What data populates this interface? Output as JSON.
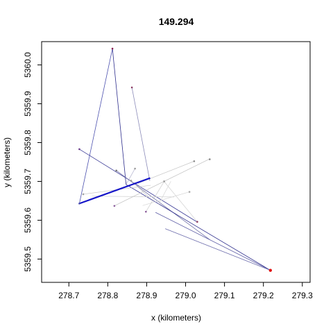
{
  "chart_data": {
    "type": "line",
    "title": "149.294",
    "xlabel": "x (kilometers)",
    "ylabel": "y (kilometers)",
    "xlim": [
      278.63,
      279.32
    ],
    "ylim": [
      5359.44,
      5360.06
    ],
    "x_ticks": [
      "278.7",
      "278.8",
      "278.9",
      "279.0",
      "279.1",
      "279.2",
      "279.3"
    ],
    "x_tick_values": [
      278.7,
      278.8,
      278.9,
      279.0,
      279.1,
      279.2,
      279.3
    ],
    "y_ticks": [
      "5359.5",
      "5359.6",
      "5359.7",
      "5359.8",
      "5359.9",
      "5360.0"
    ],
    "y_tick_values": [
      5359.5,
      5359.6,
      5359.7,
      5359.8,
      5359.9,
      5360.0
    ],
    "grid": false,
    "segments": [
      {
        "x": [
          278.812,
          278.727
        ],
        "y": [
          5360.042,
          5359.643
        ],
        "color": "#4a4fae",
        "width": 0.8
      },
      {
        "x": [
          278.812,
          278.847
        ],
        "y": [
          5360.042,
          5359.692
        ],
        "color": "#2d2d8c",
        "width": 0.8
      },
      {
        "x": [
          278.862,
          278.908
        ],
        "y": [
          5359.942,
          5359.702
        ],
        "color": "#8a8ab8",
        "width": 0.8
      },
      {
        "x": [
          278.847,
          278.87
        ],
        "y": [
          5359.692,
          5359.733
        ],
        "color": "#b0b0cc",
        "width": 0.7
      },
      {
        "x": [
          278.727,
          279.027
        ],
        "y": [
          5359.783,
          5359.597
        ],
        "color": "#3a3a96",
        "width": 0.8
      },
      {
        "x": [
          278.822,
          279.062
        ],
        "y": [
          5359.728,
          5359.55
        ],
        "color": "#7070a8",
        "width": 0.8
      },
      {
        "x": [
          278.847,
          279.218
        ],
        "y": [
          5359.692,
          5359.471
        ],
        "color": "#2a2a8a",
        "width": 0.8
      },
      {
        "x": [
          278.923,
          279.218
        ],
        "y": [
          5359.62,
          5359.471
        ],
        "color": "#5a5aa4",
        "width": 0.8
      },
      {
        "x": [
          278.948,
          279.218
        ],
        "y": [
          5359.578,
          5359.471
        ],
        "color": "#6c6cac",
        "width": 0.8
      },
      {
        "x": [
          278.737,
          278.91
        ],
        "y": [
          5359.667,
          5359.69
        ],
        "color": "#c8c8c8",
        "width": 0.7
      },
      {
        "x": [
          278.76,
          278.97
        ],
        "y": [
          5359.662,
          5359.66
        ],
        "color": "#d0d0d0",
        "width": 0.7
      },
      {
        "x": [
          278.817,
          279.06
        ],
        "y": [
          5359.637,
          5359.757
        ],
        "color": "#bdbdbd",
        "width": 0.7
      },
      {
        "x": [
          278.878,
          279.022
        ],
        "y": [
          5359.695,
          5359.752
        ],
        "color": "#c4c4c4",
        "width": 0.7
      },
      {
        "x": [
          278.89,
          279.01
        ],
        "y": [
          5359.638,
          5359.673
        ],
        "color": "#d4d4d4",
        "width": 0.7
      },
      {
        "x": [
          278.943,
          279.03
        ],
        "y": [
          5359.702,
          5359.596
        ],
        "color": "#cfcfcf",
        "width": 0.7
      },
      {
        "x": [
          278.93,
          278.962
        ],
        "y": [
          5359.64,
          5359.7
        ],
        "color": "#d6d6d6",
        "width": 0.7
      },
      {
        "x": [
          278.898,
          278.945
        ],
        "y": [
          5359.622,
          5359.7
        ],
        "color": "#cccccc",
        "width": 0.7
      },
      {
        "x": [
          278.86,
          278.905
        ],
        "y": [
          5359.702,
          5359.66
        ],
        "color": "#c0c0c0",
        "width": 0.7
      },
      {
        "x": [
          278.727,
          278.907
        ],
        "y": [
          5359.643,
          5359.708
        ],
        "color": "#1414c8",
        "width": 2.2
      }
    ],
    "points": [
      {
        "x": 278.812,
        "y": 5360.042,
        "color": "#8b2252"
      },
      {
        "x": 278.862,
        "y": 5359.942,
        "color": "#8b3a62"
      },
      {
        "x": 278.727,
        "y": 5359.783,
        "color": "#6a3a8a"
      },
      {
        "x": 279.062,
        "y": 5359.757,
        "color": "#888888"
      },
      {
        "x": 279.022,
        "y": 5359.752,
        "color": "#888888"
      },
      {
        "x": 278.822,
        "y": 5359.728,
        "color": "#777777"
      },
      {
        "x": 278.87,
        "y": 5359.733,
        "color": "#9a9a9a"
      },
      {
        "x": 278.945,
        "y": 5359.7,
        "color": "#999999"
      },
      {
        "x": 278.86,
        "y": 5359.702,
        "color": "#999999"
      },
      {
        "x": 279.01,
        "y": 5359.673,
        "color": "#aaaaaa"
      },
      {
        "x": 278.737,
        "y": 5359.667,
        "color": "#a0a0a0"
      },
      {
        "x": 278.817,
        "y": 5359.637,
        "color": "#8a5a9a"
      },
      {
        "x": 278.898,
        "y": 5359.622,
        "color": "#8a5a9a"
      },
      {
        "x": 279.03,
        "y": 5359.596,
        "color": "#8b3a62"
      },
      {
        "x": 278.727,
        "y": 5359.643,
        "color": "#4a4fae"
      },
      {
        "x": 278.907,
        "y": 5359.708,
        "color": "#1414c8"
      },
      {
        "x": 279.218,
        "y": 5359.471,
        "color": "#e01010"
      }
    ]
  }
}
